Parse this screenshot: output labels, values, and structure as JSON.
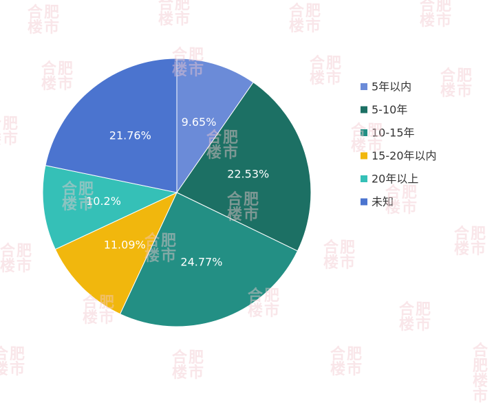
{
  "chart_data": {
    "type": "pie",
    "categories": [
      "5年以内",
      "5-10年",
      "10-15年",
      "15-20年以内",
      "20年以上",
      "未知"
    ],
    "values": [
      9.65,
      22.53,
      24.77,
      11.09,
      10.2,
      21.76
    ],
    "value_labels": [
      "9.65%",
      "22.53%",
      "24.77%",
      "11.09%",
      "10.2%",
      "21.76%"
    ],
    "colors": [
      "#6b8bd8",
      "#1c7064",
      "#238f84",
      "#f1b70d",
      "#35c0b7",
      "#4b74cf"
    ],
    "legend_position": "right",
    "start_angle": "top, clockwise",
    "unit": "%"
  },
  "watermark": {
    "line1": "合肥",
    "line2": "楼市"
  }
}
